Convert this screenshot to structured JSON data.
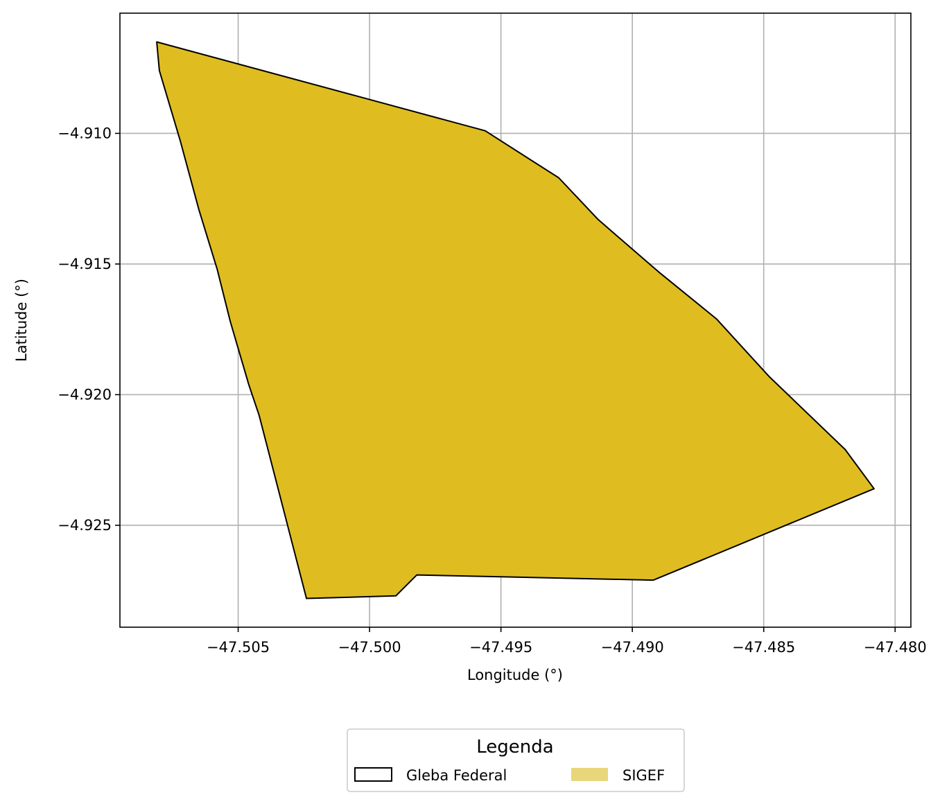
{
  "chart_data": {
    "type": "map",
    "xlabel": "Longitude (°)",
    "ylabel": "Latitude (°)",
    "xlim": [
      -47.5095,
      -47.4794
    ],
    "ylim": [
      -4.9289,
      -4.9054
    ],
    "x_ticks": [
      -47.505,
      -47.5,
      -47.495,
      -47.49,
      -47.485,
      -47.48
    ],
    "x_tick_labels": [
      "−47.505",
      "−47.500",
      "−47.495",
      "−47.490",
      "−47.485",
      "−47.480"
    ],
    "y_ticks": [
      -4.91,
      -4.915,
      -4.92,
      -4.925
    ],
    "y_tick_labels": [
      "−4.910",
      "−4.915",
      "−4.920",
      "−4.925"
    ],
    "grid": true,
    "polygon": {
      "name": "SIGEF",
      "fill": "#dfbd20",
      "stroke": "#000000",
      "coordinates": [
        [
          -47.5081,
          -4.9065
        ],
        [
          -47.508,
          -4.9076
        ],
        [
          -47.5072,
          -4.9103
        ],
        [
          -47.5065,
          -4.9129
        ],
        [
          -47.5058,
          -4.9152
        ],
        [
          -47.5053,
          -4.9172
        ],
        [
          -47.5046,
          -4.9196
        ],
        [
          -47.5042,
          -4.9208
        ],
        [
          -47.5024,
          -4.9278
        ],
        [
          -47.499,
          -4.9277
        ],
        [
          -47.4982,
          -4.9269
        ],
        [
          -47.4892,
          -4.9271
        ],
        [
          -47.4808,
          -4.9236
        ],
        [
          -47.4819,
          -4.9221
        ],
        [
          -47.4848,
          -4.9193
        ],
        [
          -47.4868,
          -4.9171
        ],
        [
          -47.489,
          -4.9153
        ],
        [
          -47.4913,
          -4.9133
        ],
        [
          -47.4928,
          -4.9117
        ],
        [
          -47.4956,
          -4.9099
        ],
        [
          -47.5081,
          -4.9065
        ]
      ]
    },
    "legend": {
      "title": "Legenda",
      "placement": "bottom-center",
      "entries": [
        {
          "label": "Gleba Federal",
          "style": "outline",
          "color": "#000000"
        },
        {
          "label": "SIGEF",
          "style": "fill",
          "color": "#e8d67a"
        }
      ]
    }
  }
}
